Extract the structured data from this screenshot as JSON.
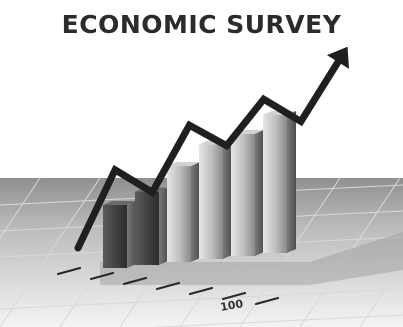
{
  "title": "ECONOMIC SURVEY",
  "axis_label": "100",
  "bar_levels": [
    0.33,
    0.43,
    0.62,
    0.78,
    0.86,
    1.0
  ],
  "trend_levels": [
    0.0,
    0.42,
    0.3,
    0.66,
    0.55,
    0.8,
    0.68,
    1.0
  ]
}
